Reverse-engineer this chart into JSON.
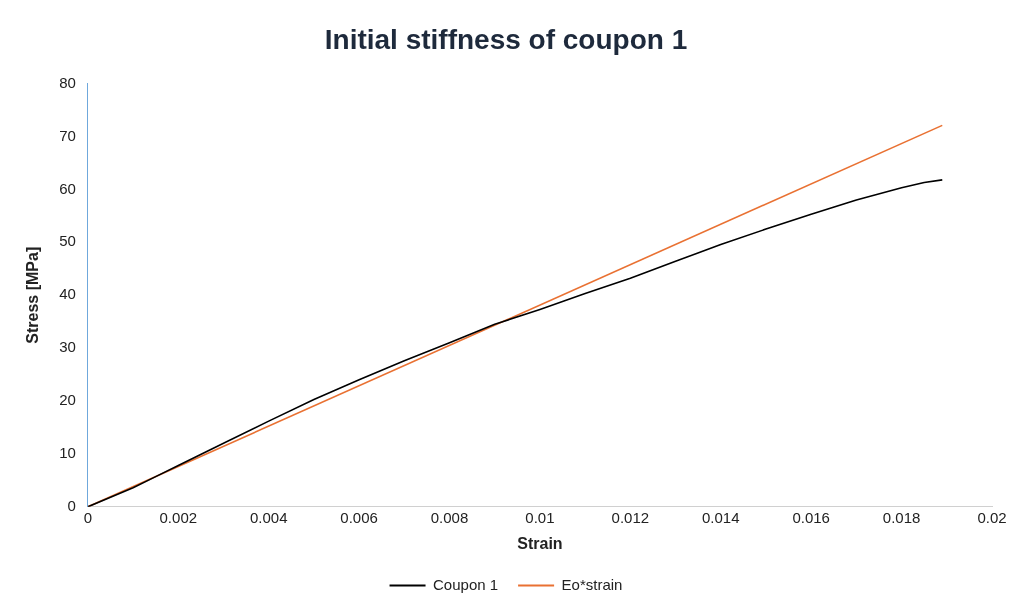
{
  "chart_data": {
    "type": "line",
    "title": "Initial stiffness of coupon 1",
    "xlabel": "Strain",
    "ylabel": "Stress [MPa]",
    "xlim": [
      0,
      0.02
    ],
    "xticks": [
      0,
      0.002,
      0.004,
      0.006,
      0.008,
      0.01,
      0.012,
      0.014,
      0.016,
      0.018,
      0.02
    ],
    "ylim": [
      0,
      80
    ],
    "yticks": [
      0,
      10,
      20,
      30,
      40,
      50,
      60,
      70,
      80
    ],
    "grid": false,
    "legend": "bottom",
    "marker": "none",
    "line_style": "solid",
    "series": [
      {
        "name": "Coupon 1",
        "color": "#000000",
        "x": [
          0,
          0.001,
          0.0015,
          0.002,
          0.003,
          0.004,
          0.005,
          0.006,
          0.007,
          0.008,
          0.009,
          0.01,
          0.011,
          0.012,
          0.013,
          0.014,
          0.015,
          0.016,
          0.017,
          0.018,
          0.0185,
          0.0189
        ],
        "values": [
          0,
          3.6,
          5.7,
          7.8,
          12,
          16.2,
          20.3,
          24,
          27.6,
          31,
          34.5,
          37.3,
          40.3,
          43.2,
          46.4,
          49.6,
          52.5,
          55.3,
          58,
          60.3,
          61.3,
          61.8
        ]
      },
      {
        "name": "Eo*strain",
        "color": "#e97132",
        "x": [
          0,
          0.0189
        ],
        "values": [
          0,
          72.1
        ]
      }
    ]
  }
}
